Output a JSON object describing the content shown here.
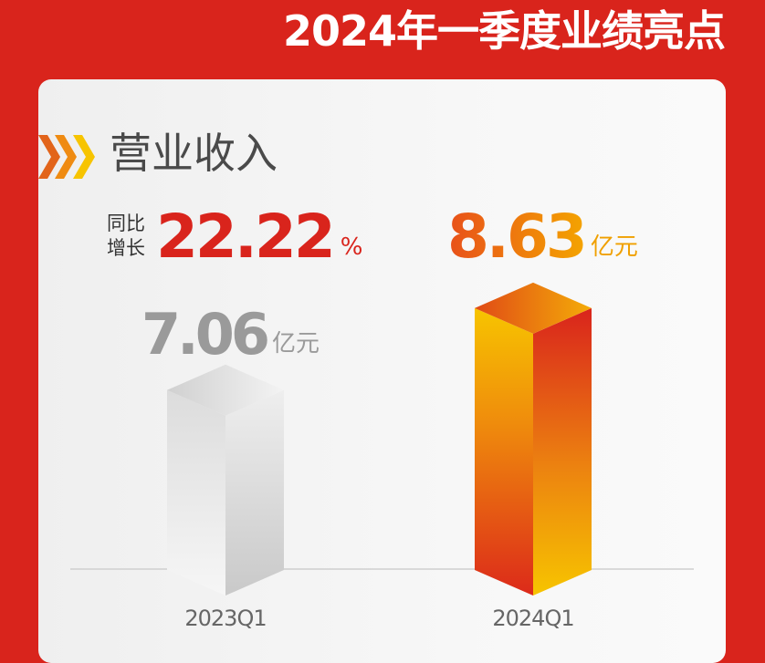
{
  "header": {
    "title": "2024年一季度业绩亮点"
  },
  "section": {
    "title": "营业收入",
    "icon": "chevron-arrows-icon"
  },
  "growth": {
    "label_line1": "同比",
    "label_line2": "增长",
    "value": "22.22",
    "unit": "%"
  },
  "colors": {
    "background": "#d9241c",
    "accent_orange": "#f08a10",
    "accent_yellow": "#f7c400",
    "grey_bar": "#d4d4d4"
  },
  "chart_data": {
    "type": "bar",
    "style": "3d-column",
    "categories": [
      "2023Q1",
      "2024Q1"
    ],
    "values": [
      7.06,
      8.63
    ],
    "value_labels": [
      "7.06",
      "8.63"
    ],
    "unit": "亿元",
    "grid": false
  }
}
